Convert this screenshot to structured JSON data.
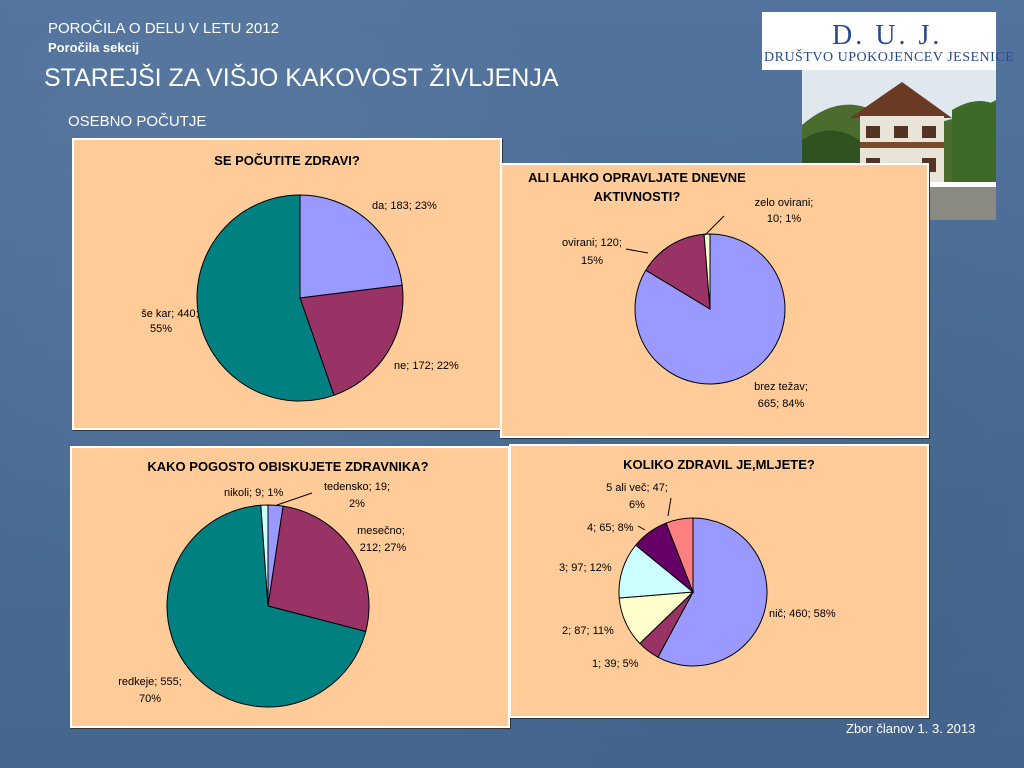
{
  "header": {
    "top_line": "POROČILA O DELU V LETU 2012",
    "subtitle": "Poročila sekcij",
    "title": "STAREJŠI ZA VIŠJO KAKOVOST ŽIVLJENJA",
    "section": "OSEBNO POČUTJE"
  },
  "logo": {
    "letters": "D. U. J.",
    "name": "DRUŠTVO UPOKOJENCEV JESENICE"
  },
  "footer": {
    "text": "Zbor članov 1. 3. 2013"
  },
  "colors": {
    "panel_background": "#ffcc99",
    "slide_background": "#4d6f97"
  },
  "chart_data": [
    {
      "type": "pie",
      "title": "SE POČUTITE ZDRAVI?",
      "slices": [
        {
          "label": "da",
          "value": 183,
          "percent": 23,
          "color": "#9999ff",
          "text": [
            "da; 183; 23%"
          ]
        },
        {
          "label": "ne",
          "value": 172,
          "percent": 22,
          "color": "#993366",
          "text": [
            "ne; 172; 22%"
          ]
        },
        {
          "label": "še kar",
          "value": 440,
          "percent": 55,
          "color": "#008080",
          "text": [
            "še kar; 440;",
            "55%"
          ]
        }
      ]
    },
    {
      "type": "pie",
      "title": [
        "ALI  LAHKO OPRAVLJATE DNEVNE",
        "AKTIVNOSTI?"
      ],
      "slices": [
        {
          "label": "brez težav",
          "value": 665,
          "percent": 84,
          "color": "#9999ff",
          "text": [
            "brez težav;",
            "665; 84%"
          ]
        },
        {
          "label": "ovirani",
          "value": 120,
          "percent": 15,
          "color": "#993366",
          "text": [
            "ovirani; 120;",
            "15%"
          ]
        },
        {
          "label": "zelo ovirani",
          "value": 10,
          "percent": 1,
          "color": "#ffffcc",
          "text": [
            "zelo ovirani;",
            "10; 1%"
          ]
        }
      ]
    },
    {
      "type": "pie",
      "title": "KAKO POGOSTO OBISKUJETE ZDRAVNIKA?",
      "slices": [
        {
          "label": "tedensko",
          "value": 19,
          "percent": 2,
          "color": "#9999ff",
          "text": [
            "tedensko; 19;",
            "2%"
          ]
        },
        {
          "label": "mesečno",
          "value": 212,
          "percent": 27,
          "color": "#993366",
          "text": [
            "mesečno;",
            "212; 27%"
          ]
        },
        {
          "label": "redkeje",
          "value": 555,
          "percent": 70,
          "color": "#008080",
          "text": [
            "redkeje; 555;",
            "70%"
          ]
        },
        {
          "label": "nikoli",
          "value": 9,
          "percent": 1,
          "color": "#ccffff",
          "text": [
            "nikoli; 9; 1%"
          ]
        }
      ]
    },
    {
      "type": "pie",
      "title": "KOLIKO ZDRAVIL JE,MLJETE?",
      "slices": [
        {
          "label": "nič",
          "value": 460,
          "percent": 58,
          "color": "#9999ff",
          "text": [
            "nič; 460; 58%"
          ]
        },
        {
          "label": "1",
          "value": 39,
          "percent": 5,
          "color": "#993366",
          "text": [
            "1; 39; 5%"
          ]
        },
        {
          "label": "2",
          "value": 87,
          "percent": 11,
          "color": "#ffffcc",
          "text": [
            "2; 87; 11%"
          ]
        },
        {
          "label": "3",
          "value": 97,
          "percent": 12,
          "color": "#ccffff",
          "text": [
            "3; 97; 12%"
          ]
        },
        {
          "label": "4",
          "value": 65,
          "percent": 8,
          "color": "#660066",
          "text": [
            "4; 65; 8%"
          ]
        },
        {
          "label": "5 ali več",
          "value": 47,
          "percent": 6,
          "color": "#ff8080",
          "text": [
            "5 ali več; 47;",
            "6%"
          ]
        }
      ]
    }
  ]
}
